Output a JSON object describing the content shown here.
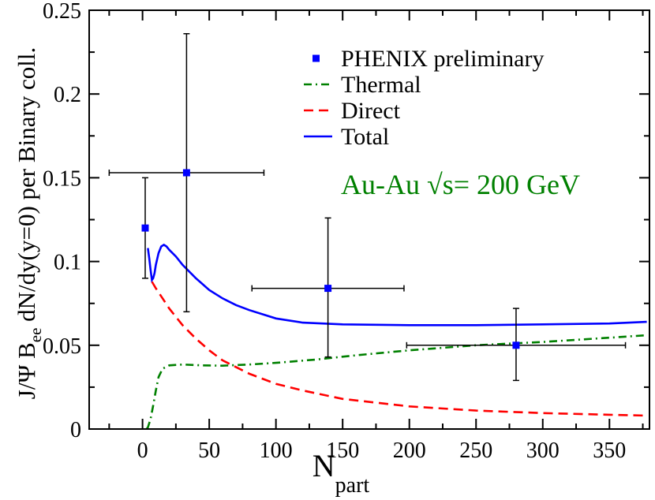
{
  "chart_data": {
    "type": "scatter",
    "xlabel": "N",
    "xlabel_sub": "part",
    "ylabel": "J/Ψ B",
    "ylabel_sub": "ee",
    "ylabel_rest": " dN/dy(y=0) per Binary coll.",
    "xlim": [
      -40,
      380
    ],
    "ylim": [
      0,
      0.25
    ],
    "x_ticks": [
      0,
      50,
      100,
      150,
      200,
      250,
      300,
      350
    ],
    "x_tick_labels": [
      "0",
      "50",
      "100",
      "150",
      "200",
      "250",
      "300",
      "350"
    ],
    "y_ticks": [
      0,
      0.05,
      0.1,
      0.15,
      0.2,
      0.25
    ],
    "y_tick_labels": [
      "0",
      "0.05",
      "0.1",
      "0.15",
      "0.2",
      "0.25"
    ],
    "annotation": "Au-Au √s= 200 GeV",
    "legend": [
      {
        "label": "PHENIX preliminary",
        "style": "marker",
        "color": "#0000ff"
      },
      {
        "label": "Thermal",
        "style": "dashdot",
        "color": "#008000"
      },
      {
        "label": "Direct",
        "style": "dashed",
        "color": "#ff0000"
      },
      {
        "label": "Total",
        "style": "solid",
        "color": "#0000ff"
      }
    ],
    "points": {
      "name": "PHENIX preliminary",
      "color": "#0000ff",
      "data": [
        {
          "x": 2,
          "y": 0.12,
          "xerr": 0,
          "ylo": 0.09,
          "yhi": 0.15
        },
        {
          "x": 33,
          "y": 0.153,
          "xerr": 58,
          "ylo": 0.07,
          "yhi": 0.236
        },
        {
          "x": 139,
          "y": 0.084,
          "xerr": 57,
          "ylo": 0.043,
          "yhi": 0.126
        },
        {
          "x": 280,
          "y": 0.05,
          "xerr": 82,
          "ylo": 0.029,
          "yhi": 0.072
        }
      ]
    },
    "series": [
      {
        "name": "Thermal",
        "color": "#008000",
        "style": "dashdot",
        "x": [
          3,
          4,
          6,
          8,
          10,
          12,
          15,
          20,
          30,
          45,
          60,
          80,
          100,
          130,
          160,
          200,
          250,
          300,
          350,
          378
        ],
        "y": [
          0,
          0.001,
          0.006,
          0.014,
          0.023,
          0.031,
          0.036,
          0.038,
          0.0385,
          0.038,
          0.0378,
          0.0385,
          0.0395,
          0.0415,
          0.044,
          0.047,
          0.05,
          0.052,
          0.0545,
          0.056
        ]
      },
      {
        "name": "Direct",
        "color": "#ff0000",
        "style": "dashed",
        "x": [
          7,
          10,
          15,
          20,
          30,
          40,
          50,
          60,
          80,
          100,
          120,
          150,
          200,
          250,
          300,
          350,
          378
        ],
        "y": [
          0.088,
          0.084,
          0.078,
          0.072,
          0.062,
          0.054,
          0.047,
          0.041,
          0.033,
          0.027,
          0.023,
          0.018,
          0.0135,
          0.011,
          0.0095,
          0.0085,
          0.008
        ]
      },
      {
        "name": "Total",
        "color": "#0000ff",
        "style": "solid",
        "x": [
          4,
          5,
          6,
          7,
          8,
          9,
          10,
          12,
          14,
          16,
          18,
          20,
          25,
          30,
          40,
          50,
          60,
          70,
          80,
          100,
          120,
          150,
          200,
          250,
          300,
          350,
          378
        ],
        "y": [
          0.108,
          0.102,
          0.095,
          0.089,
          0.09,
          0.093,
          0.098,
          0.105,
          0.109,
          0.11,
          0.109,
          0.107,
          0.103,
          0.098,
          0.09,
          0.083,
          0.078,
          0.074,
          0.071,
          0.066,
          0.0635,
          0.0625,
          0.062,
          0.062,
          0.0625,
          0.063,
          0.064
        ]
      }
    ]
  }
}
